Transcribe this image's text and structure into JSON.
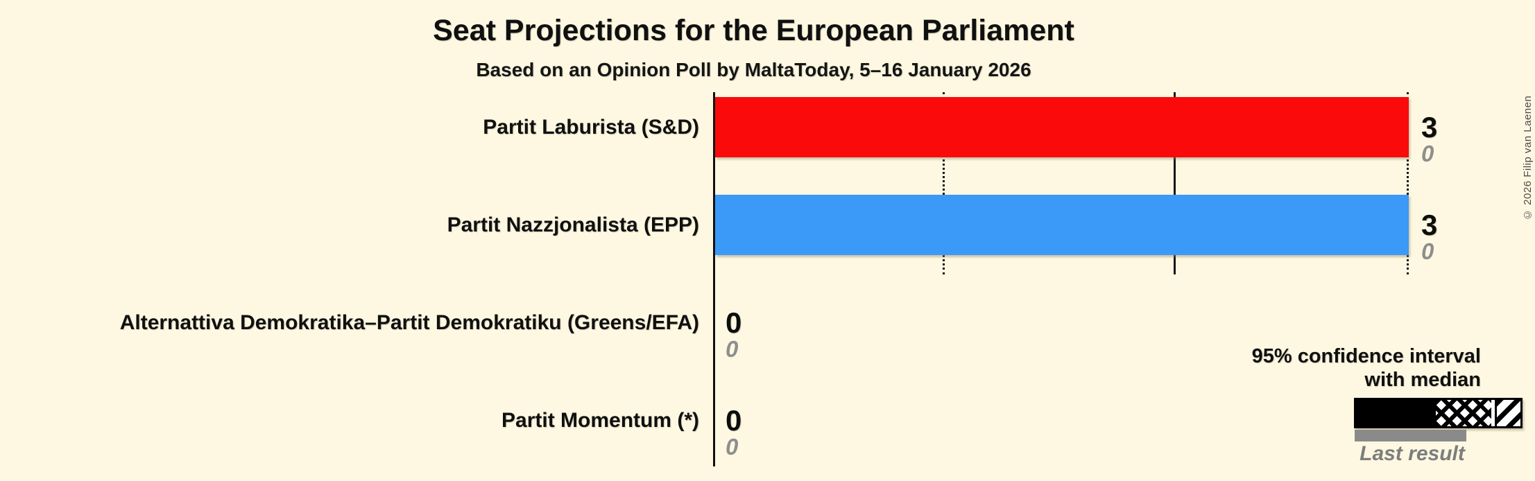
{
  "header": {
    "title": "Seat Projections for the European Parliament",
    "subtitle": "Based on an Opinion Poll by MaltaToday, 5–16 January 2026"
  },
  "copyright": "© 2026 Filip van Laenen",
  "rows": [
    {
      "label": "Partit Laburista (S&D)",
      "value": "3",
      "last_result": "0"
    },
    {
      "label": "Partit Nazzjonalista (EPP)",
      "value": "3",
      "last_result": "0"
    },
    {
      "label": "Alternattiva Demokratika–Partit Demokratiku (Greens/EFA)",
      "value": "0",
      "last_result": "0"
    },
    {
      "label": "Partit Momentum (*)",
      "value": "0",
      "last_result": "0"
    }
  ],
  "legend": {
    "ci_line1": "95% confidence interval",
    "ci_line2": "with median",
    "last_result": "Last result"
  },
  "colors": {
    "background": "#FEF8E2",
    "partit_laburista": "#FA0A0A",
    "partit_nazzjonalista": "#3B99F7",
    "last_result_gray": "#8A8A8A",
    "value_gray": "#8E8E8E",
    "text": "#101010"
  },
  "chart_data": {
    "type": "bar",
    "orientation": "horizontal",
    "title": "Seat Projections for the European Parliament",
    "subtitle": "Based on an Opinion Poll by MaltaToday, 5–16 January 2026",
    "categories": [
      "Partit Laburista (S&D)",
      "Partit Nazzjonalista (EPP)",
      "Alternattiva Demokratika–Partit Demokratiku (Greens/EFA)",
      "Partit Momentum (*)"
    ],
    "series": [
      {
        "name": "Median seat projection (95% confidence interval)",
        "values": [
          3,
          3,
          0,
          0
        ]
      },
      {
        "name": "Last result",
        "values": [
          0,
          0,
          0,
          0
        ]
      }
    ],
    "bar_colors": [
      "#FA0A0A",
      "#3B99F7",
      null,
      null
    ],
    "xlabel": "",
    "ylabel": "",
    "xlim": [
      0,
      3
    ],
    "gridlines": {
      "dotted_at": [
        1,
        3
      ],
      "solid_at": [
        2
      ],
      "axis_at": 0
    },
    "legend_entries": [
      "95% confidence interval with median",
      "Last result"
    ],
    "legend_position": "bottom-right"
  }
}
